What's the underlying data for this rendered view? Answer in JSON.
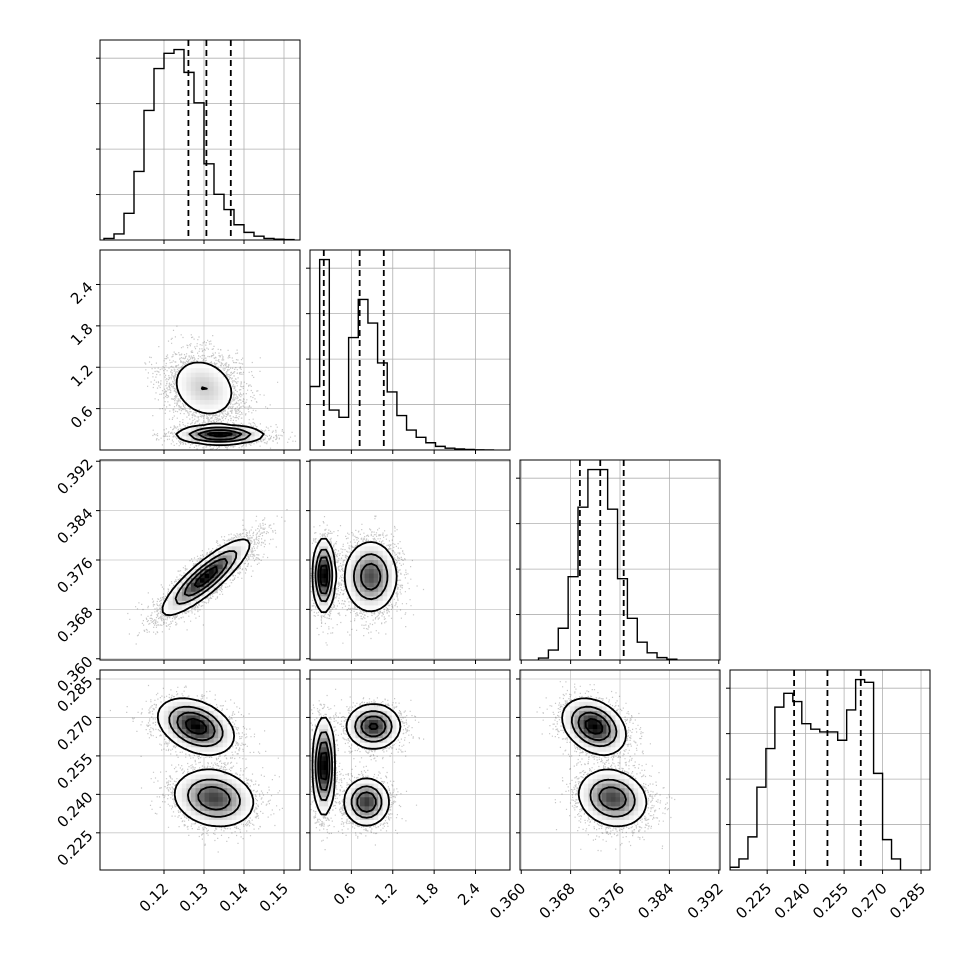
{
  "chart_data": {
    "type": "corner",
    "title": "",
    "grid": true,
    "parameters": [
      {
        "label": "",
        "range": [
          0.104,
          0.154
        ],
        "ticks": [
          0.12,
          0.13,
          0.14,
          0.15
        ],
        "tick_labels": [
          "0.12",
          "0.13",
          "0.14",
          "0.15"
        ],
        "quantiles": [
          0.1261,
          0.1306,
          0.1367
        ],
        "histogram": {
          "bin_edges": [
            0.105,
            0.1075,
            0.11,
            0.1125,
            0.115,
            0.1175,
            0.12,
            0.1225,
            0.125,
            0.1275,
            0.13,
            0.1325,
            0.135,
            0.1375,
            0.14,
            0.1425,
            0.145,
            0.1475,
            0.15,
            0.1525
          ],
          "counts": [
            2,
            8,
            35,
            90,
            170,
            225,
            245,
            250,
            220,
            180,
            100,
            60,
            40,
            20,
            10,
            5,
            2,
            1,
            0.5
          ]
        }
      },
      {
        "label": "",
        "range": [
          0.0,
          2.9
        ],
        "ticks": [
          0.6,
          1.2,
          1.8,
          2.4
        ],
        "tick_labels": [
          "0.6",
          "1.2",
          "1.8",
          "2.4"
        ],
        "quantiles": [
          0.2,
          0.72,
          1.07
        ],
        "histogram": {
          "bin_edges": [
            0.0,
            0.14,
            0.28,
            0.42,
            0.56,
            0.7,
            0.84,
            0.98,
            1.12,
            1.26,
            1.4,
            1.54,
            1.68,
            1.82,
            1.96,
            2.1,
            2.24,
            2.38,
            2.52,
            2.66
          ],
          "counts": [
            350,
            1050,
            220,
            180,
            620,
            830,
            700,
            480,
            320,
            190,
            110,
            70,
            40,
            20,
            10,
            6,
            3,
            1,
            0.5
          ]
        }
      },
      {
        "label": "",
        "range": [
          0.3598,
          0.3922
        ],
        "ticks": [
          0.36,
          0.368,
          0.376,
          0.384,
          0.392
        ],
        "tick_labels": [
          "0.360",
          "0.368",
          "0.376",
          "0.384",
          "0.392"
        ],
        "quantiles": [
          0.3695,
          0.3728,
          0.3766
        ],
        "histogram": {
          "bin_edges": [
            0.3628,
            0.3644,
            0.366,
            0.3676,
            0.3692,
            0.3708,
            0.3724,
            0.374,
            0.3756,
            0.3772,
            0.3788,
            0.3804,
            0.382,
            0.3836,
            0.3852
          ],
          "counts": [
            5,
            25,
            80,
            210,
            385,
            480,
            480,
            380,
            205,
            105,
            45,
            18,
            6,
            2
          ]
        }
      },
      {
        "label": "",
        "range": [
          0.2105,
          0.2885
        ],
        "ticks": [
          0.225,
          0.24,
          0.255,
          0.27,
          0.285
        ],
        "tick_labels": [
          "0.225",
          "0.240",
          "0.255",
          "0.270",
          "0.285"
        ],
        "quantiles": [
          0.2355,
          0.2485,
          0.2615
        ],
        "histogram": {
          "bin_edges": [
            0.2105,
            0.214,
            0.2175,
            0.221,
            0.2245,
            0.228,
            0.2315,
            0.235,
            0.2385,
            0.242,
            0.2455,
            0.249,
            0.2525,
            0.256,
            0.2595,
            0.263,
            0.2665,
            0.27,
            0.2735,
            0.277
          ],
          "counts": [
            5,
            20,
            60,
            150,
            220,
            295,
            320,
            305,
            265,
            255,
            250,
            250,
            235,
            290,
            345,
            340,
            175,
            55,
            20
          ]
        }
      }
    ],
    "panels_2d": [
      {
        "x": 0,
        "y": 1,
        "modes": [
          {
            "mx": 0.13,
            "my": 0.9,
            "sx": 0.0048,
            "sy": 0.26,
            "rho": -0.2,
            "w": 0.55
          },
          {
            "mx": 0.134,
            "my": 0.22,
            "sx": 0.0055,
            "sy": 0.07,
            "rho": 0.0,
            "w": 0.45
          }
        ]
      },
      {
        "x": 0,
        "y": 2,
        "modes": [
          {
            "mx": 0.1305,
            "my": 0.3732,
            "sx": 0.0055,
            "sy": 0.0031,
            "rho": 0.86,
            "w": 1.0
          }
        ]
      },
      {
        "x": 1,
        "y": 2,
        "modes": [
          {
            "mx": 0.2,
            "my": 0.3735,
            "sx": 0.08,
            "sy": 0.003,
            "rho": 0.0,
            "w": 0.35
          },
          {
            "mx": 0.88,
            "my": 0.3733,
            "sx": 0.2,
            "sy": 0.003,
            "rho": 0.0,
            "w": 0.65
          }
        ]
      },
      {
        "x": 0,
        "y": 3,
        "modes": [
          {
            "mx": 0.128,
            "my": 0.2665,
            "sx": 0.0048,
            "sy": 0.0055,
            "rho": -0.35,
            "w": 0.5
          },
          {
            "mx": 0.1325,
            "my": 0.2385,
            "sx": 0.0052,
            "sy": 0.0058,
            "rho": -0.15,
            "w": 0.5
          }
        ]
      },
      {
        "x": 1,
        "y": 3,
        "modes": [
          {
            "mx": 0.2,
            "my": 0.251,
            "sx": 0.08,
            "sy": 0.0095,
            "rho": 0.0,
            "w": 0.35
          },
          {
            "mx": 0.92,
            "my": 0.2665,
            "sx": 0.2,
            "sy": 0.0045,
            "rho": 0.0,
            "w": 0.35
          },
          {
            "mx": 0.82,
            "my": 0.237,
            "sx": 0.17,
            "sy": 0.0048,
            "rho": 0.0,
            "w": 0.3
          }
        ]
      },
      {
        "x": 2,
        "y": 3,
        "modes": [
          {
            "mx": 0.3718,
            "my": 0.2665,
            "sx": 0.0026,
            "sy": 0.0055,
            "rho": -0.3,
            "w": 0.5
          },
          {
            "mx": 0.3748,
            "my": 0.2385,
            "sx": 0.0029,
            "sy": 0.0058,
            "rho": -0.15,
            "w": 0.5
          }
        ]
      }
    ]
  }
}
